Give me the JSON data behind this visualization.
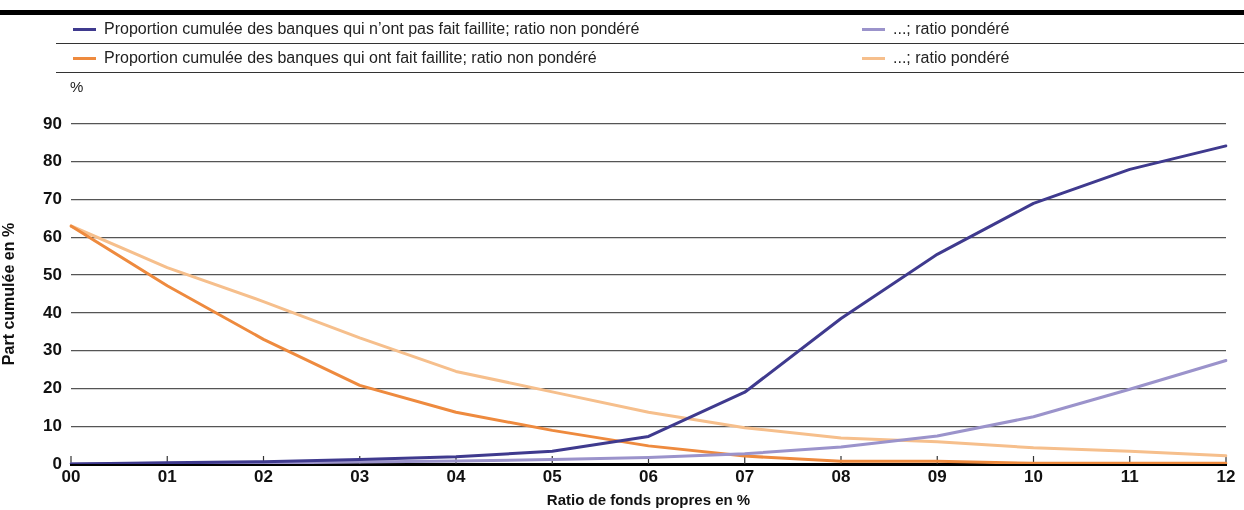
{
  "chart_data": {
    "type": "line",
    "categories": [
      "00",
      "01",
      "02",
      "03",
      "04",
      "05",
      "06",
      "07",
      "08",
      "09",
      "10",
      "11",
      "12"
    ],
    "series": [
      {
        "name": "Proportion cumulée des banques qui n’ont pas fait faillite; ratio non pondéré",
        "color": "#3f3a8e",
        "values": [
          0,
          0.3,
          0.6,
          1.2,
          1.9,
          3.4,
          7.3,
          19,
          38.5,
          55.5,
          69,
          78,
          84.2
        ]
      },
      {
        "name": "...; ratio pondéré",
        "color": "#9b93cb",
        "values": [
          0,
          0.2,
          0.3,
          0.5,
          0.8,
          1.2,
          1.7,
          2.7,
          4.5,
          7.4,
          12.5,
          19.8,
          27.4
        ]
      },
      {
        "name": "Proportion cumulée des banques qui ont fait faillite; ratio non pondéré",
        "color": "#ee8a3e",
        "values": [
          63,
          47.2,
          33,
          20.8,
          13.7,
          8.9,
          4.8,
          2.1,
          0.7,
          0.7,
          0.2,
          0.2,
          0.2
        ]
      },
      {
        "name": "...; ratio pondéré",
        "color": "#f6bf8c",
        "values": [
          63,
          52,
          43,
          33.4,
          24.5,
          19.1,
          13.7,
          9.6,
          6.9,
          5.9,
          4.3,
          3.4,
          2.2
        ]
      }
    ],
    "xlabel": "Ratio de fonds propres en %",
    "ylabel": "Part cumulée en %",
    "annotations": [
      "%"
    ],
    "ylim": [
      0,
      90
    ],
    "yticks": [
      0,
      10,
      20,
      30,
      40,
      50,
      60,
      70,
      80,
      90
    ],
    "grid": "y",
    "legend": "top",
    "marker": "none"
  }
}
